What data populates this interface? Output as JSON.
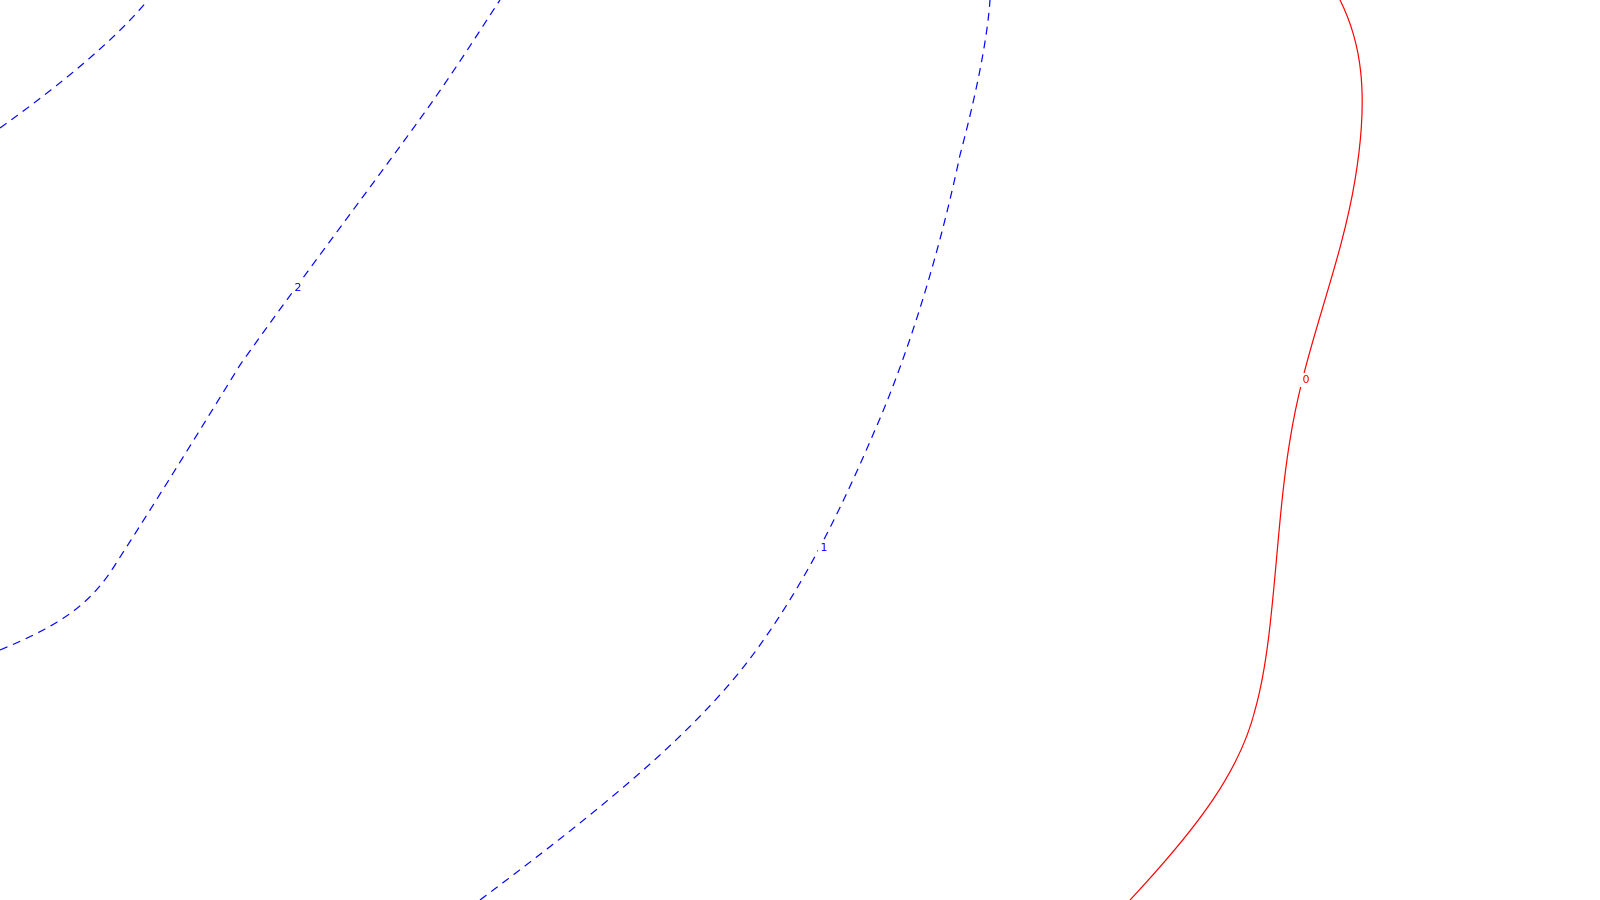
{
  "chart_data": {
    "type": "contour",
    "title": "",
    "xlabel": "",
    "ylabel": "",
    "grid": false,
    "legend": "none",
    "levels": [
      {
        "level": 2,
        "label": "2",
        "color": "#0000ff",
        "style": "dashed"
      },
      {
        "level": 1,
        "label": "1",
        "color": "#0000ff",
        "style": "dashed"
      },
      {
        "level": 0,
        "label": "0",
        "color": "#ff0000",
        "style": "solid"
      }
    ]
  }
}
